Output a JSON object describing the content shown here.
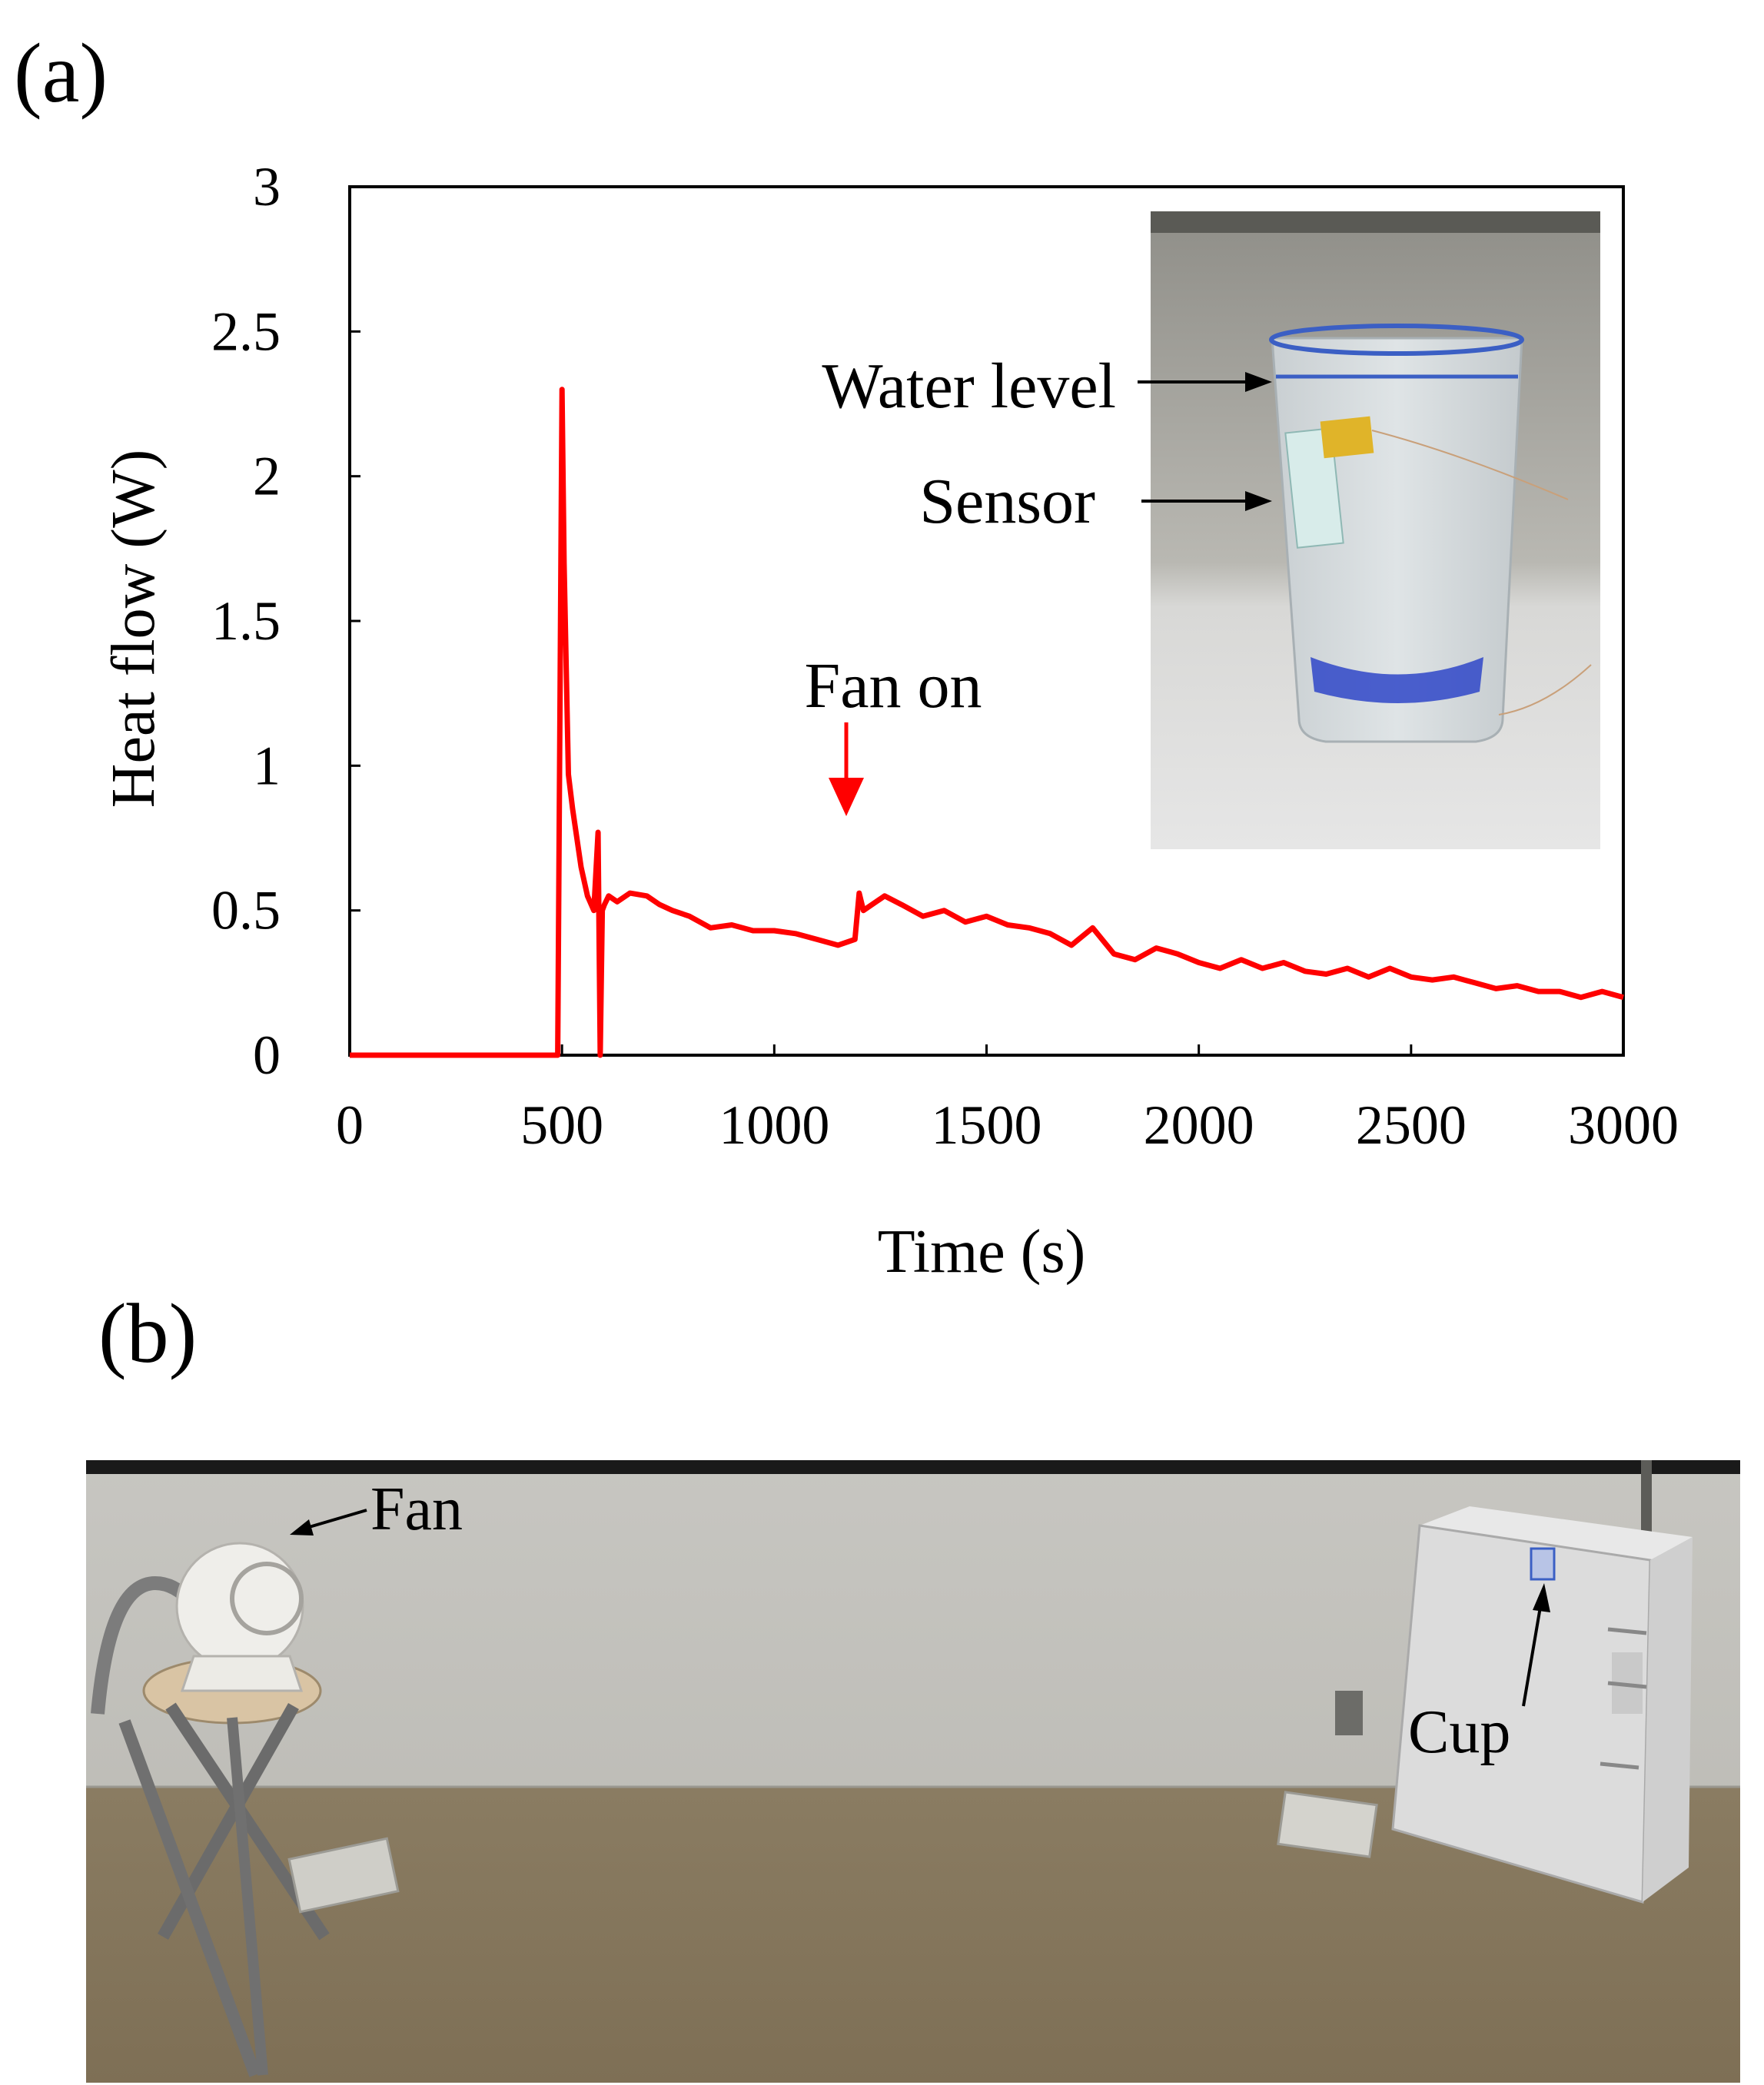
{
  "panels": {
    "a_label": "(a)",
    "b_label": "(b)"
  },
  "chart_data": {
    "type": "line",
    "xlabel": "Time (s)",
    "ylabel": "Heat flow (W)",
    "xlim": [
      0,
      3000
    ],
    "ylim": [
      0,
      3
    ],
    "x_ticks": [
      "0",
      "500",
      "1000",
      "1500",
      "2000",
      "2500",
      "3000"
    ],
    "y_ticks": [
      "0",
      "0.5",
      "1",
      "1.5",
      "2",
      "2.5",
      "3"
    ],
    "grid": false,
    "series": [
      {
        "color": "#ff0000",
        "x": [
          0,
          100,
          200,
          300,
          400,
          480,
          490,
          500,
          505,
          515,
          525,
          535,
          545,
          560,
          575,
          585,
          590,
          595,
          600,
          610,
          630,
          660,
          700,
          730,
          760,
          800,
          850,
          900,
          950,
          1000,
          1050,
          1100,
          1150,
          1190,
          1200,
          1210,
          1260,
          1300,
          1350,
          1400,
          1450,
          1500,
          1550,
          1600,
          1650,
          1700,
          1750,
          1800,
          1850,
          1900,
          1950,
          2000,
          2050,
          2100,
          2150,
          2200,
          2250,
          2300,
          2350,
          2400,
          2450,
          2500,
          2550,
          2600,
          2650,
          2700,
          2750,
          2800,
          2850,
          2900,
          2950,
          3000
        ],
        "y": [
          0,
          0,
          0,
          0,
          0,
          0,
          0,
          2.3,
          1.7,
          0.97,
          0.85,
          0.75,
          0.65,
          0.55,
          0.5,
          0.77,
          0.0,
          0.5,
          0.52,
          0.55,
          0.53,
          0.56,
          0.55,
          0.52,
          0.5,
          0.48,
          0.44,
          0.45,
          0.43,
          0.43,
          0.42,
          0.4,
          0.38,
          0.4,
          0.56,
          0.5,
          0.55,
          0.52,
          0.48,
          0.5,
          0.46,
          0.48,
          0.45,
          0.44,
          0.42,
          0.38,
          0.44,
          0.35,
          0.33,
          0.37,
          0.35,
          0.32,
          0.3,
          0.33,
          0.3,
          0.32,
          0.29,
          0.28,
          0.3,
          0.27,
          0.3,
          0.27,
          0.26,
          0.27,
          0.25,
          0.23,
          0.24,
          0.22,
          0.22,
          0.2,
          0.22,
          0.2
        ]
      }
    ],
    "annotations": [
      {
        "text": "Fan on",
        "x": 1180,
        "arrow_y": 0.8,
        "color": "#ff0000"
      }
    ],
    "inset": {
      "water_level_label": "Water level",
      "sensor_label": "Sensor"
    }
  },
  "photo_b": {
    "fan_label": "Fan",
    "cup_label": "Cup"
  },
  "colors": {
    "line": "#ff0000",
    "axis": "#000000"
  }
}
